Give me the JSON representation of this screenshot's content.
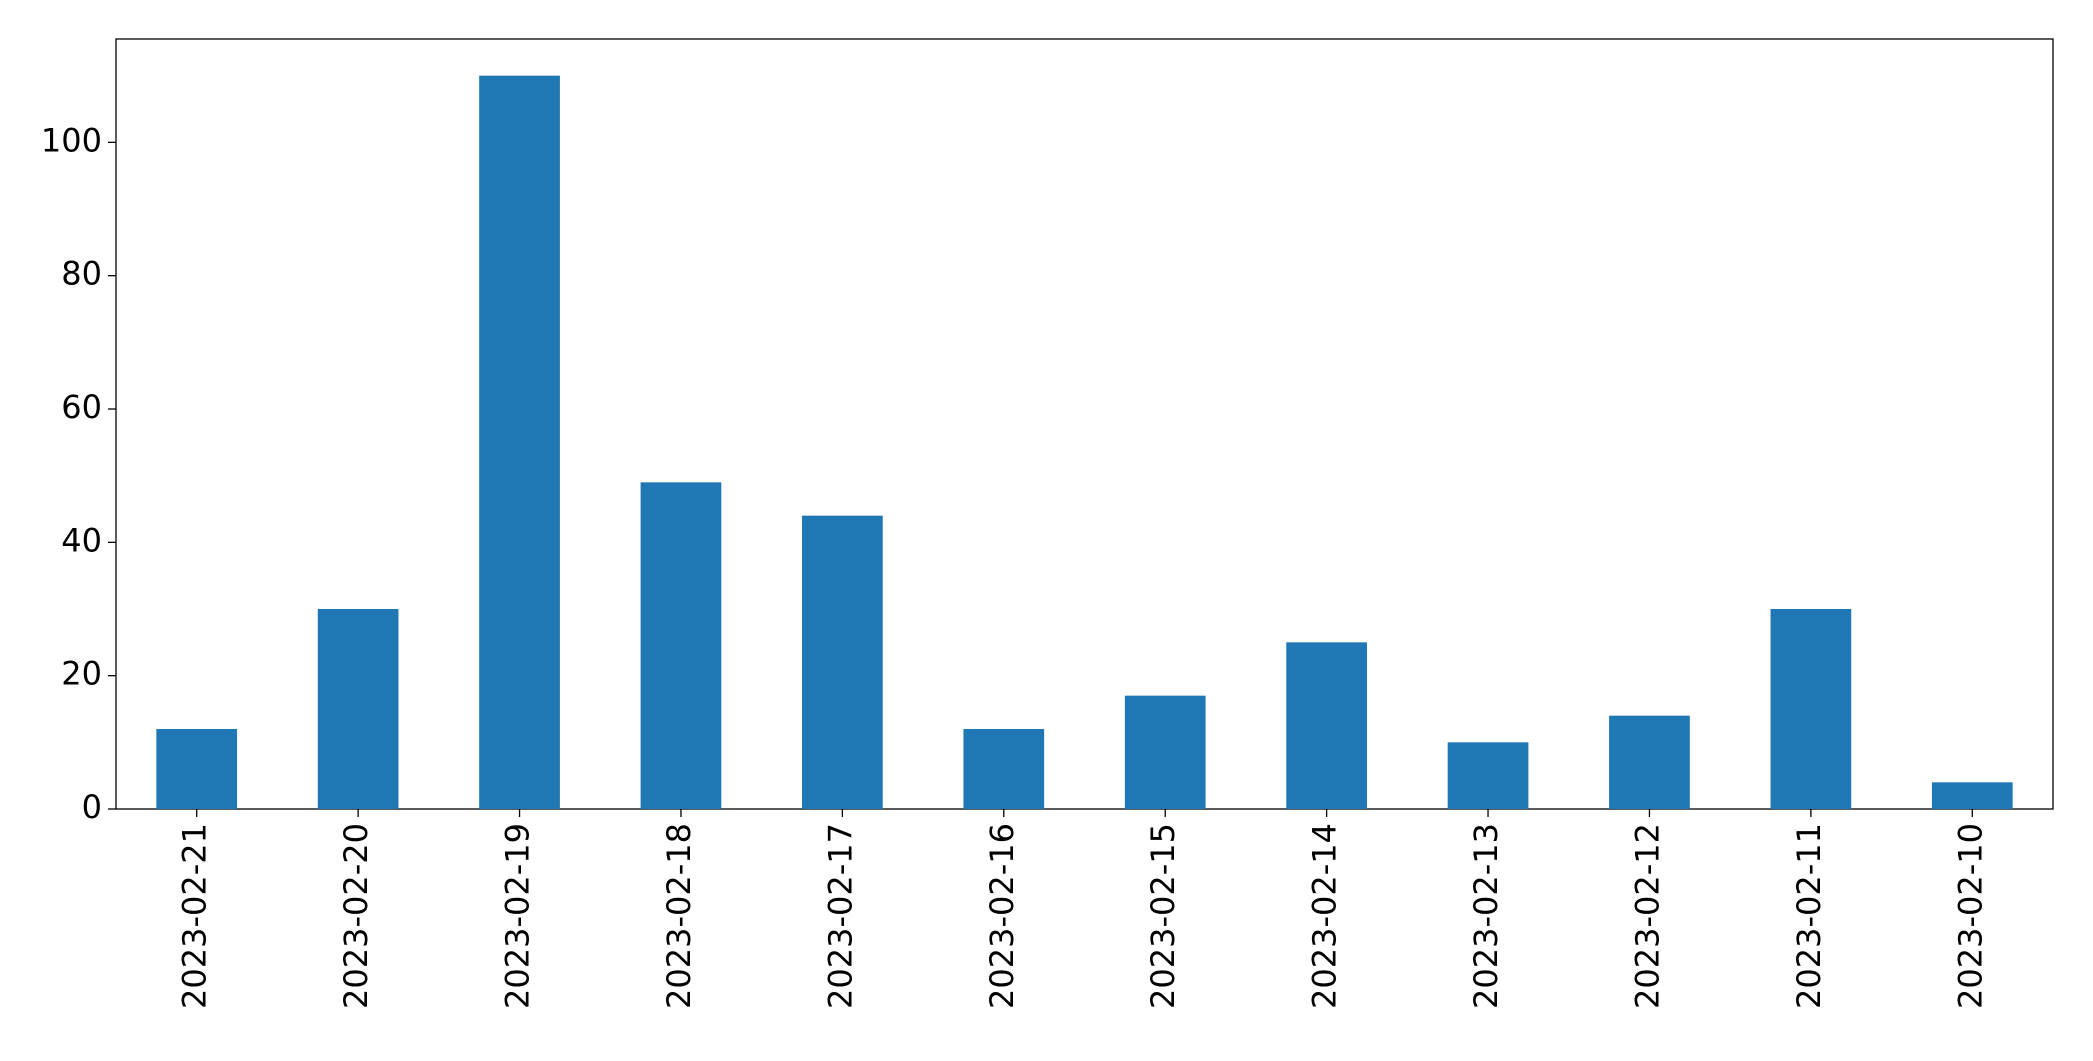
{
  "chart_data": {
    "type": "bar",
    "categories": [
      "2023-02-21",
      "2023-02-20",
      "2023-02-19",
      "2023-02-18",
      "2023-02-17",
      "2023-02-16",
      "2023-02-15",
      "2023-02-14",
      "2023-02-13",
      "2023-02-12",
      "2023-02-11",
      "2023-02-10"
    ],
    "values": [
      12,
      30,
      110,
      49,
      44,
      12,
      17,
      25,
      10,
      14,
      30,
      4
    ],
    "color": "#1f77b4",
    "ylim": [
      0,
      115.5
    ],
    "yticks": [
      0,
      20,
      40,
      60,
      80,
      100
    ],
    "grid": false
  }
}
